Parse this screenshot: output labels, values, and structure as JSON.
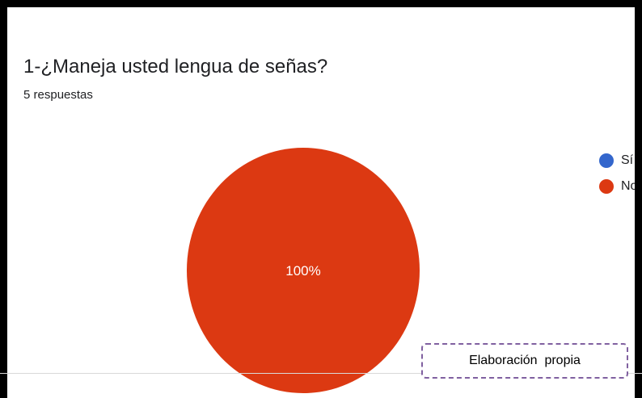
{
  "chart_data": {
    "type": "pie",
    "title": "1-¿Maneja usted lengua de señas?",
    "subtitle": "5 respuestas",
    "categories": [
      "Sí",
      "No"
    ],
    "values": [
      0,
      100
    ],
    "data_labels": [
      "",
      "100%"
    ],
    "colors": [
      "#3366cc",
      "#dc3912"
    ],
    "legend_position": "right"
  },
  "credit": {
    "text": "Elaboración  propia"
  }
}
